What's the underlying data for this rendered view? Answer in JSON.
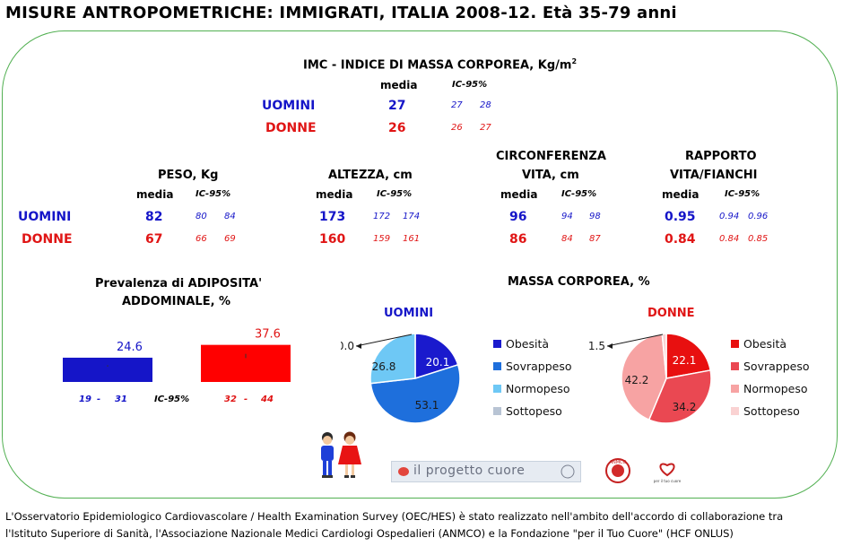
{
  "title": "MISURE ANTROPOMETRICHE: IMMIGRATI, ITALIA 2008-12. Età 35-79 anni",
  "labels": {
    "media": "media",
    "ic95": "IC-95%",
    "uomini": "UOMINI",
    "donne": "DONNE"
  },
  "colors": {
    "uomini": "#1515c8",
    "donne": "#e01515",
    "frame": "#52b052"
  },
  "imc": {
    "title_main": "IMC - INDICE DI MASSA CORPOREA, Kg/m",
    "title_sup": "2",
    "uomini": {
      "media": "27",
      "lo": "27",
      "hi": "28"
    },
    "donne": {
      "media": "26",
      "lo": "26",
      "hi": "27"
    }
  },
  "peso": {
    "title": "PESO, Kg",
    "uomini": {
      "media": "82",
      "lo": "80",
      "hi": "84"
    },
    "donne": {
      "media": "67",
      "lo": "66",
      "hi": "69"
    }
  },
  "altezza": {
    "title": "ALTEZZA, cm",
    "uomini": {
      "media": "173",
      "lo": "172",
      "hi": "174"
    },
    "donne": {
      "media": "160",
      "lo": "159",
      "hi": "161"
    }
  },
  "circonferenza": {
    "title_line1": "CIRCONFERENZA",
    "title_line2": "VITA, cm",
    "uomini": {
      "media": "96",
      "lo": "94",
      "hi": "98"
    },
    "donne": {
      "media": "86",
      "lo": "84",
      "hi": "87"
    }
  },
  "rapporto": {
    "title_line1": "RAPPORTO",
    "title_line2": "VITA/FIANCHI",
    "uomini": {
      "media": "0.95",
      "lo": "0.94",
      "hi": "0.96"
    },
    "donne": {
      "media": "0.84",
      "lo": "0.84",
      "hi": "0.85"
    }
  },
  "chart_data": [
    {
      "type": "bar",
      "title": "Prevalenza di ADIPOSITA' ADDOMINALE, %",
      "title_line1": "Prevalenza di ADIPOSITA'",
      "title_line2": "ADDOMINALE, %",
      "categories": [
        "UOMINI",
        "DONNE"
      ],
      "values": [
        24.6,
        37.6
      ],
      "value_labels": [
        "24.6",
        "37.6"
      ],
      "ci": [
        [
          19,
          31
        ],
        [
          32,
          44
        ]
      ],
      "ci_labels": [
        {
          "lo": "19",
          "sep": "-",
          "hi": "31"
        },
        {
          "lo": "32",
          "sep": "-",
          "hi": "44"
        }
      ],
      "ci_title": "IC-95%",
      "colors": [
        "#1515c8",
        "#ff0000"
      ],
      "ylim": [
        0,
        100
      ]
    },
    {
      "type": "pie",
      "title": "MASSA CORPOREA, %",
      "subtitle": "UOMINI",
      "categories": [
        "Obesità",
        "Sovrappeso",
        "Normopeso",
        "Sottopeso"
      ],
      "values": [
        20.1,
        53.1,
        26.8,
        0.0
      ],
      "value_labels": [
        "20.1",
        "53.1",
        "26.8",
        "0.0"
      ],
      "colors": [
        "#1a1acd",
        "#1e6fdc",
        "#6ec8f5",
        "#b8c4d4"
      ],
      "legend": "right"
    },
    {
      "type": "pie",
      "title": "MASSA CORPOREA, %",
      "subtitle": "DONNE",
      "categories": [
        "Obesità",
        "Sovrappeso",
        "Normopeso",
        "Sottopeso"
      ],
      "values": [
        22.1,
        34.2,
        42.2,
        1.5
      ],
      "value_labels": [
        "22.1",
        "34.2",
        "42.2",
        "1.5"
      ],
      "colors": [
        "#e81010",
        "#ea4852",
        "#f7a3a3",
        "#fad2d2"
      ],
      "legend": "right"
    }
  ],
  "logos": {
    "progetto_cuore": "il progetto cuore",
    "anmco": "ANMCO",
    "cuore": "per il tuo cuore"
  },
  "footer": {
    "line1": "L'Osservatorio Epidemiologico Cardiovascolare / Health Examination Survey (OEC/HES) è stato realizzato nell'ambito dell'accordo di collaborazione tra",
    "line2": "l'Istituto Superiore di Sanità, l'Associazione Nazionale Medici Cardiologi Ospedalieri (ANMCO) e la Fondazione \"per il Tuo Cuore\" (HCF ONLUS)"
  }
}
